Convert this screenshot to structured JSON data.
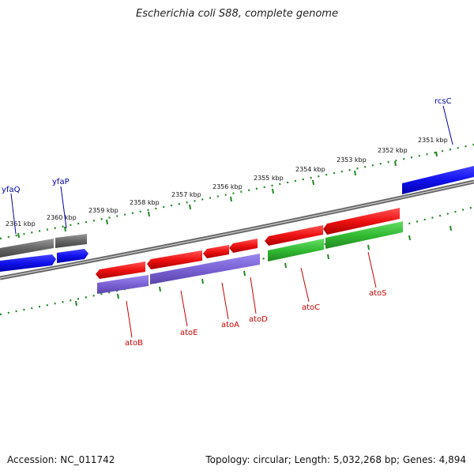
{
  "title": "Escherichia coli S88, complete genome",
  "footer": {
    "accession": "Accession: NC_011742",
    "summary": "Topology: circular; Length: 5,032,268 bp; Genes: 4,894"
  },
  "kbp_labels": [
    "2351 kbp",
    "2352 kbp",
    "2353 kbp",
    "2354 kbp",
    "2355 kbp",
    "2356 kbp",
    "2357 kbp",
    "2358 kbp",
    "2359 kbp",
    "2360 kbp",
    "2361 kbp"
  ],
  "gene_labels": [
    {
      "name": "rcsC",
      "color": "#0000aa"
    },
    {
      "name": "yfaP",
      "color": "#0000aa"
    },
    {
      "name": "yfaQ",
      "color": "#0000aa"
    },
    {
      "name": "atoS",
      "color": "#cc0000"
    },
    {
      "name": "atoC",
      "color": "#cc0000"
    },
    {
      "name": "atoD",
      "color": "#cc0000"
    },
    {
      "name": "atoA",
      "color": "#cc0000"
    },
    {
      "name": "atoE",
      "color": "#cc0000"
    },
    {
      "name": "atoB",
      "color": "#cc0000"
    }
  ],
  "colors": {
    "cds_red": "#ee1111",
    "cds_blue": "#1111ee",
    "gray_track": "#777777",
    "purple_track": "#7a62d6",
    "green_track": "#33bb33",
    "tick_green": "#228822",
    "backbone": "#888888"
  }
}
